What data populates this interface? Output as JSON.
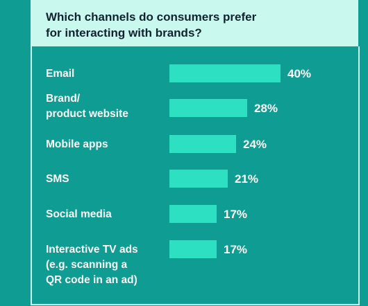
{
  "chart_data": {
    "type": "bar",
    "orientation": "horizontal",
    "title": "Which channels do consumers prefer\nfor interacting with brands?",
    "categories": [
      [
        "Email"
      ],
      [
        "Brand/",
        "product website"
      ],
      [
        "Mobile apps"
      ],
      [
        "SMS"
      ],
      [
        "Social media"
      ],
      [
        "Interactive TV ads",
        "(e.g. scanning a",
        "QR code in an ad)"
      ]
    ],
    "values": [
      40,
      28,
      24,
      21,
      17,
      17
    ],
    "value_labels": [
      "40%",
      "28%",
      "24%",
      "21%",
      "17%",
      "17%"
    ],
    "unit": "%",
    "grid": false,
    "legend": "none",
    "colors": {
      "background": "#0f9d93",
      "header": "#c9f8ee",
      "bar": "#2ee0c2",
      "text": "#ffffff",
      "title_text": "#10232e"
    }
  }
}
